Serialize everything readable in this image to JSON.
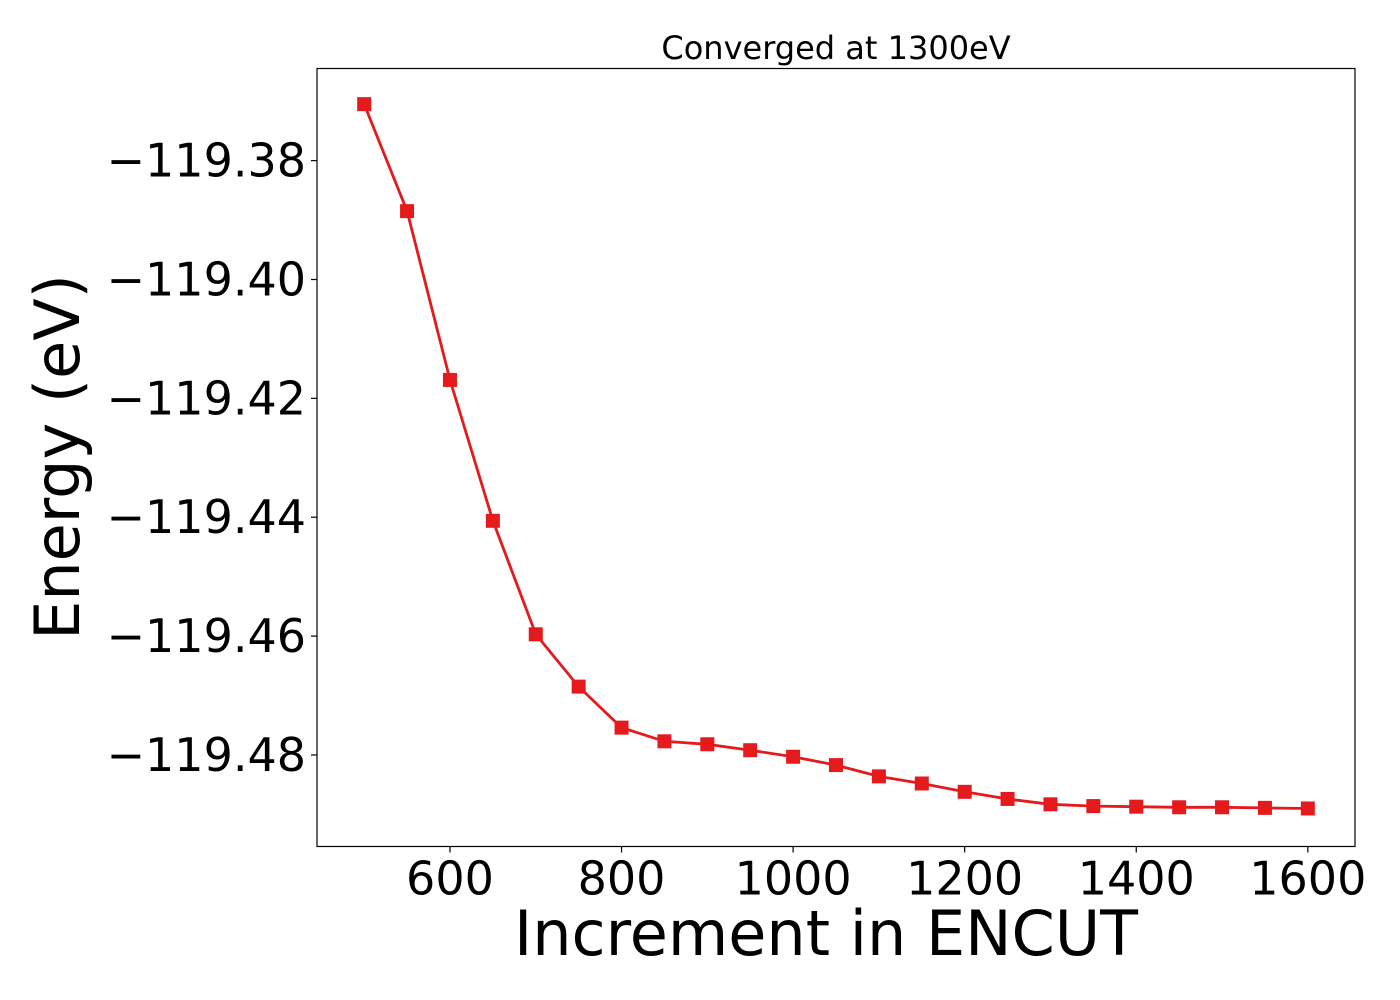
{
  "chart_data": {
    "type": "line",
    "title": "Converged at 1300eV",
    "xlabel": "Increment in ENCUT",
    "ylabel": "Energy (eV)",
    "xlim": [
      445,
      1655
    ],
    "ylim": [
      -119.4954,
      -119.3645
    ],
    "xticks": [
      600,
      800,
      1000,
      1200,
      1400,
      1600
    ],
    "xtick_labels": [
      "600",
      "800",
      "1000",
      "1200",
      "1400",
      "1600"
    ],
    "yticks": [
      -119.38,
      -119.4,
      -119.42,
      -119.44,
      -119.46,
      -119.48
    ],
    "ytick_labels": [
      "−119.38",
      "−119.40",
      "−119.42",
      "−119.44",
      "−119.46",
      "−119.48"
    ],
    "grid": false,
    "series": [
      {
        "color": "#e41a1c",
        "marker": "square",
        "x": [
          500,
          550,
          600,
          650,
          700,
          750,
          800,
          850,
          900,
          950,
          1000,
          1050,
          1100,
          1150,
          1200,
          1250,
          1300,
          1350,
          1400,
          1450,
          1500,
          1550,
          1600
        ],
        "y": [
          -119.3705,
          -119.3885,
          -119.4169,
          -119.4406,
          -119.4597,
          -119.4685,
          -119.4754,
          -119.4777,
          -119.4782,
          -119.4792,
          -119.4803,
          -119.4817,
          -119.4836,
          -119.4848,
          -119.4862,
          -119.4874,
          -119.4883,
          -119.4886,
          -119.4887,
          -119.4888,
          -119.4888,
          -119.4889,
          -119.489
        ]
      }
    ]
  }
}
